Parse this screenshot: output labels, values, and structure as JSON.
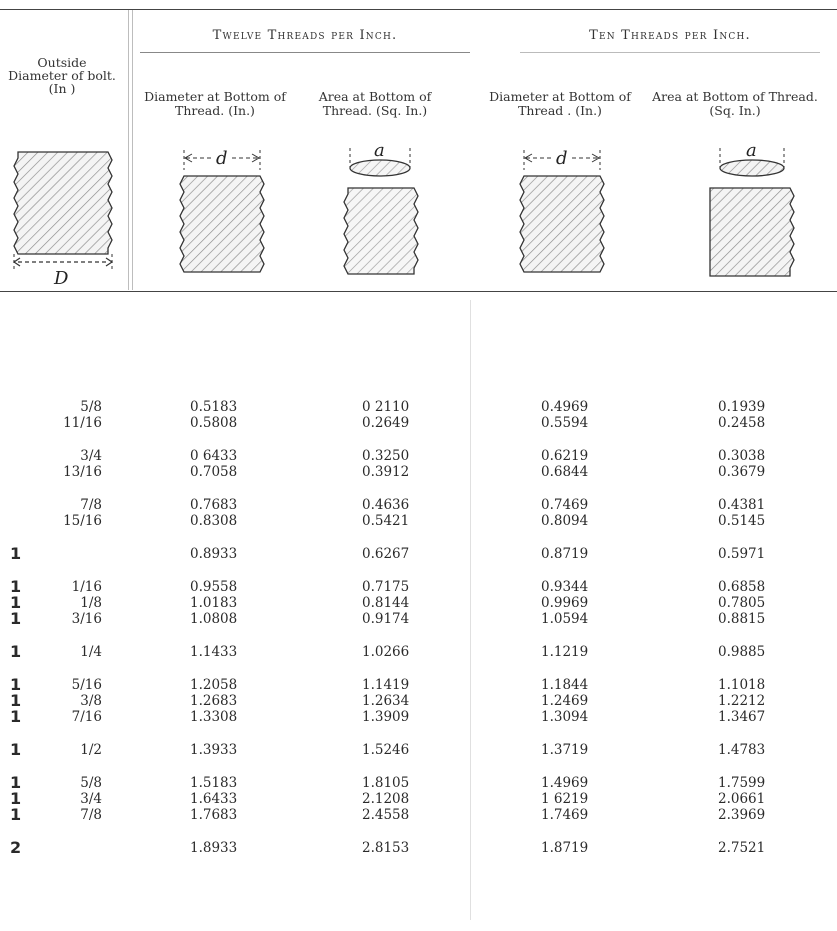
{
  "headers": {
    "outside_diameter": "Outside Diameter of bolt. (In )",
    "group_twelve": "Twelve Threads per Inch.",
    "group_ten": "Ten Threads per Inch.",
    "diameter_at_bottom_1": "Diameter at Bottom of Thread. (In.)",
    "area_at_bottom_1": "Area at Bottom of Thread. (Sq. In.)",
    "diameter_at_bottom_2": "Diameter at Bottom of Thread . (In.)",
    "area_at_bottom_2": "Area at Bottom of Thread. (Sq. In.)"
  },
  "figures": {
    "bolt_label": "D",
    "diameter_label": "d",
    "area_label": "a"
  },
  "rows": [
    {
      "whole": "",
      "frac": "5/8",
      "d12": "0.5183",
      "a12": "0 2110",
      "d10": "0.4969",
      "a10": "0.1939"
    },
    {
      "whole": "",
      "frac": "11/16",
      "d12": "0.5808",
      "a12": "0.2649",
      "d10": "0.5594",
      "a10": "0.2458"
    },
    {
      "whole": "",
      "frac": "3/4",
      "d12": "0 6433",
      "a12": "0.3250",
      "d10": "0.6219",
      "a10": "0.3038"
    },
    {
      "whole": "",
      "frac": "13/16",
      "d12": "0.7058",
      "a12": "0.3912",
      "d10": "0.6844",
      "a10": "0.3679"
    },
    {
      "whole": "",
      "frac": "7/8",
      "d12": "0.7683",
      "a12": "0.4636",
      "d10": "0.7469",
      "a10": "0.4381"
    },
    {
      "whole": "",
      "frac": "15/16",
      "d12": "0.8308",
      "a12": "0.5421",
      "d10": "0.8094",
      "a10": "0.5145"
    },
    {
      "whole": "1",
      "frac": "",
      "d12": "0.8933",
      "a12": "0.6267",
      "d10": "0.8719",
      "a10": "0.5971"
    },
    {
      "whole": "1",
      "frac": "1/16",
      "d12": "0.9558",
      "a12": "0.7175",
      "d10": "0.9344",
      "a10": "0.6858"
    },
    {
      "whole": "1",
      "frac": "1/8",
      "d12": "1.0183",
      "a12": "0.8144",
      "d10": "0.9969",
      "a10": "0.7805"
    },
    {
      "whole": "1",
      "frac": "3/16",
      "d12": "1.0808",
      "a12": "0.9174",
      "d10": "1.0594",
      "a10": "0.8815"
    },
    {
      "whole": "1",
      "frac": "1/4",
      "d12": "1.1433",
      "a12": "1.0266",
      "d10": "1.1219",
      "a10": "0.9885"
    },
    {
      "whole": "1",
      "frac": "5/16",
      "d12": "1.2058",
      "a12": "1.1419",
      "d10": "1.1844",
      "a10": "1.1018"
    },
    {
      "whole": "1",
      "frac": "3/8",
      "d12": "1.2683",
      "a12": "1.2634",
      "d10": "1.2469",
      "a10": "1.2212"
    },
    {
      "whole": "1",
      "frac": "7/16",
      "d12": "1.3308",
      "a12": "1.3909",
      "d10": "1.3094",
      "a10": "1.3467"
    },
    {
      "whole": "1",
      "frac": "1/2",
      "d12": "1.3933",
      "a12": "1.5246",
      "d10": "1.3719",
      "a10": "1.4783"
    },
    {
      "whole": "1",
      "frac": "5/8",
      "d12": "1.5183",
      "a12": "1.8105",
      "d10": "1.4969",
      "a10": "1.7599"
    },
    {
      "whole": "1",
      "frac": "3/4",
      "d12": "1.6433",
      "a12": "2.1208",
      "d10": "1 6219",
      "a10": "2.0661"
    },
    {
      "whole": "1",
      "frac": "7/8",
      "d12": "1.7683",
      "a12": "2.4558",
      "d10": "1.7469",
      "a10": "2.3969"
    },
    {
      "whole": "2",
      "frac": "",
      "d12": "1.8933",
      "a12": "2.8153",
      "d10": "1.8719",
      "a10": "2.7521"
    }
  ]
}
